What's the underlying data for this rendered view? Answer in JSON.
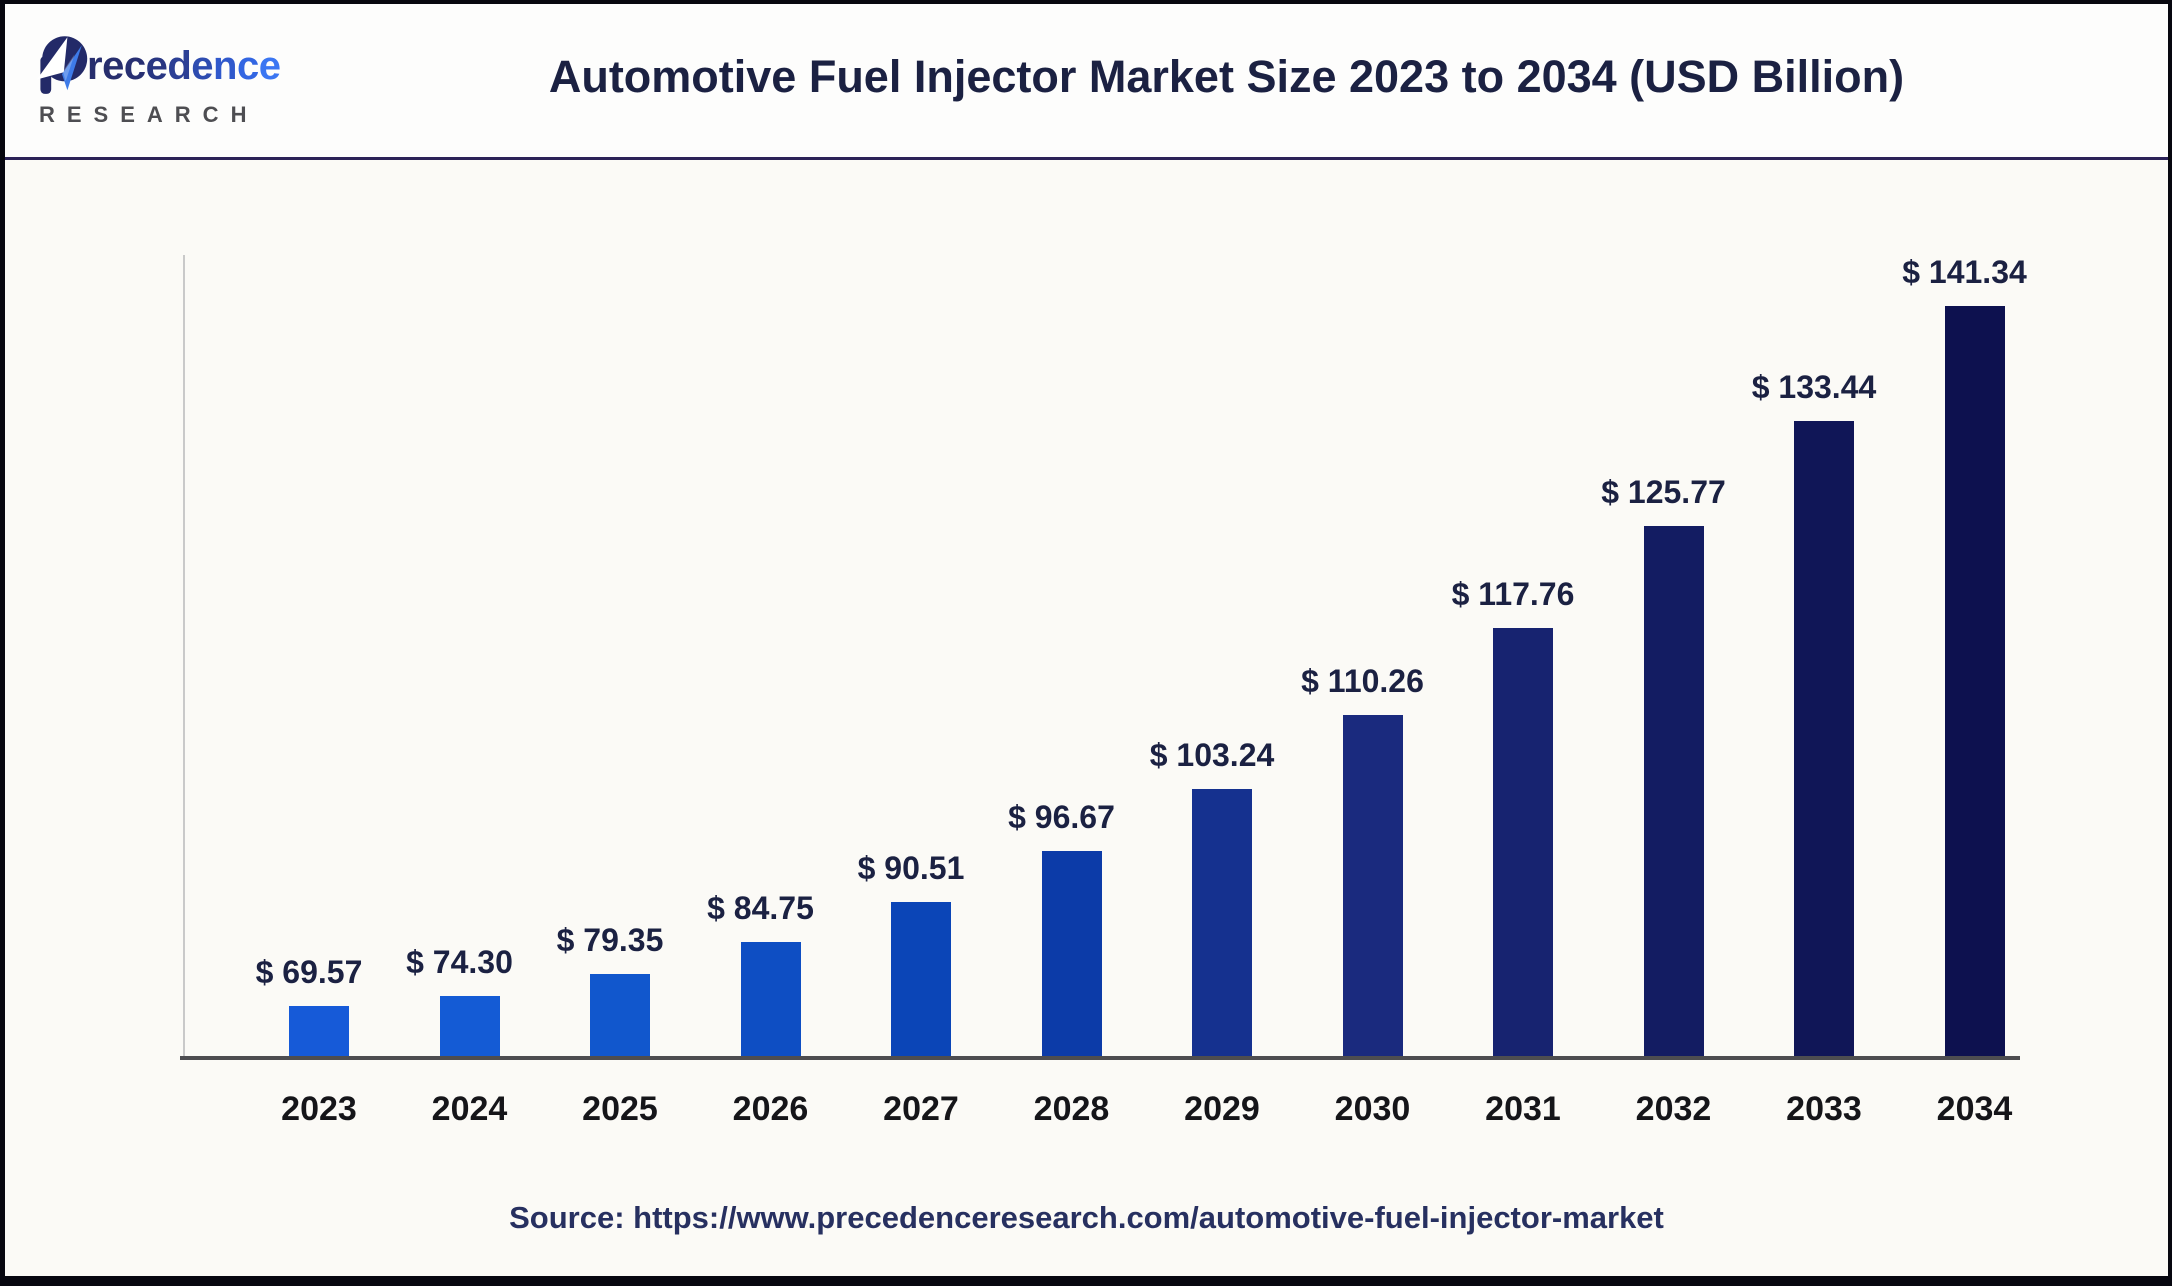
{
  "brand": {
    "name": "Precedence",
    "subtitle": "RESEARCH",
    "letter_colors": [
      "#272e6d",
      "#272e6d",
      "#272f72",
      "#283682",
      "#2b3f95",
      "#2e4cb0",
      "#3059cc",
      "#3366e2",
      "#3b76f2"
    ],
    "plane_navy": "#232a68",
    "plane_blue": "#3e7be8"
  },
  "header": {
    "title": "Automotive Fuel Injector Market Size 2023 to 2034 (USD Billion)"
  },
  "chart_data": {
    "type": "bar",
    "title": "Automotive Fuel Injector Market Size 2023 to 2034 (USD Billion)",
    "categories": [
      "2023",
      "2024",
      "2025",
      "2026",
      "2027",
      "2028",
      "2029",
      "2030",
      "2031",
      "2032",
      "2033",
      "2034"
    ],
    "values": [
      69.57,
      74.3,
      79.35,
      84.75,
      90.51,
      96.67,
      103.24,
      110.26,
      117.76,
      125.77,
      133.44,
      141.34
    ],
    "value_labels": [
      "$ 69.57",
      "$ 74.30",
      "$ 79.35",
      "$ 84.75",
      "$ 90.51",
      "$ 96.67",
      "$ 103.24",
      "$ 110.26",
      "$ 117.76",
      "$ 125.77",
      "$ 133.44",
      "$ 141.34"
    ],
    "value_prefix": "$ ",
    "unit": "USD Billion",
    "bar_colors": [
      "#165ad8",
      "#145bd5",
      "#1157cd",
      "#0e4ec3",
      "#0b45b7",
      "#0c3ba8",
      "#15318f",
      "#1a2a7e",
      "#172370",
      "#131c62",
      "#101657",
      "#0d114f"
    ],
    "xlabel": "",
    "ylabel": "",
    "grid": false,
    "legend": null,
    "axis_colors": {
      "y_axis": "#c9c9c9",
      "baseline": "#4d4d50"
    }
  },
  "source": {
    "label": "Source:",
    "url": "https://www.precedenceresearch.com/automotive-fuel-injector-market"
  }
}
